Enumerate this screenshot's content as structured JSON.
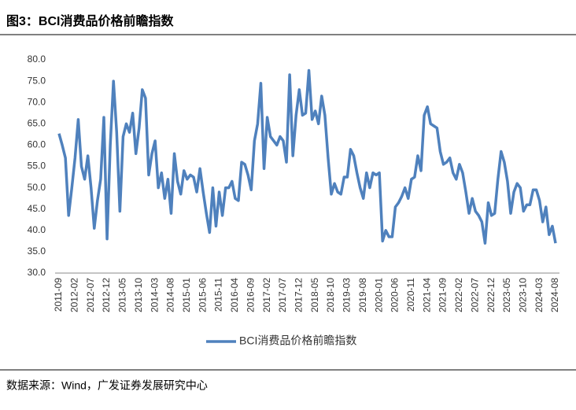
{
  "chart_data": {
    "type": "line",
    "title": "图3：BCI消费品价格前瞻指数",
    "source": "数据来源：Wind，广发证券发展研究中心",
    "categories": [
      "2011-09",
      null,
      null,
      null,
      null,
      "2012-02",
      null,
      null,
      null,
      null,
      "2012-07",
      null,
      null,
      null,
      null,
      "2012-12",
      null,
      null,
      null,
      null,
      "2013-05",
      null,
      null,
      null,
      null,
      "2013-10",
      null,
      null,
      null,
      null,
      "2014-03",
      null,
      null,
      null,
      null,
      "2014-08",
      null,
      null,
      null,
      null,
      "2015-01",
      null,
      null,
      null,
      null,
      "2015-06",
      null,
      null,
      null,
      null,
      "2015-11",
      null,
      null,
      null,
      null,
      "2016-04",
      null,
      null,
      null,
      null,
      "2016-09",
      null,
      null,
      null,
      null,
      "2017-02",
      null,
      null,
      null,
      null,
      "2017-07",
      null,
      null,
      null,
      null,
      "2017-12",
      null,
      null,
      null,
      null,
      "2018-05",
      null,
      null,
      null,
      null,
      "2018-10",
      null,
      null,
      null,
      null,
      "2019-03",
      null,
      null,
      null,
      null,
      "2019-08",
      null,
      null,
      null,
      null,
      "2020-01",
      null,
      null,
      null,
      null,
      "2020-06",
      null,
      null,
      null,
      null,
      "2020-11",
      null,
      null,
      null,
      null,
      "2021-04",
      null,
      null,
      null,
      null,
      "2021-09",
      null,
      null,
      null,
      null,
      "2022-02",
      null,
      null,
      null,
      null,
      "2022-07",
      null,
      null,
      null,
      null,
      "2022-12",
      null,
      null,
      null,
      null,
      "2023-05",
      null,
      null,
      null,
      null,
      "2023-10",
      null,
      null,
      null,
      null,
      "2024-03",
      null,
      null,
      null,
      null,
      "2024-08"
    ],
    "series": [
      {
        "name": "BCI消费品价格前瞻指数",
        "color": "#4f81bd",
        "values": [
          62.7,
          60,
          57,
          43.5,
          50,
          57,
          66,
          55,
          52,
          57.5,
          50,
          40.5,
          47,
          52,
          66.5,
          38,
          60,
          75,
          63,
          44.5,
          62,
          65,
          63,
          67.5,
          58,
          64,
          73,
          71,
          53,
          58,
          61,
          50,
          53.5,
          47.5,
          52,
          44,
          58,
          51.5,
          48.5,
          54,
          52,
          53,
          52.5,
          49,
          54.5,
          49,
          44,
          39.5,
          50,
          41,
          49,
          43.5,
          50,
          50,
          51.5,
          47.5,
          47,
          56,
          55.5,
          53,
          49.5,
          61,
          65,
          74.5,
          54.5,
          66.5,
          62,
          61,
          60,
          62,
          61,
          56,
          76.5,
          57.5,
          67,
          73,
          67,
          67.5,
          77.5,
          66,
          68,
          65,
          71.5,
          67,
          57,
          48.5,
          51,
          49,
          48.5,
          52.5,
          52.5,
          59,
          57.5,
          53.5,
          50,
          47.5,
          53.5,
          50,
          53.5,
          53,
          53.5,
          37.5,
          40,
          38.5,
          38.5,
          45.5,
          46.5,
          48,
          50,
          47.5,
          52,
          52.5,
          57.5,
          54,
          67,
          69,
          65,
          64.5,
          64,
          58.5,
          55.5,
          56,
          57,
          53.5,
          52,
          55.5,
          53.5,
          49,
          44,
          47.5,
          44.5,
          43.5,
          42,
          37,
          46.5,
          43.5,
          44,
          52,
          58.5,
          56,
          51.5,
          44,
          49,
          51,
          50,
          44.5,
          46,
          46,
          49.5,
          49.5,
          47,
          42,
          45.5,
          39,
          41,
          37
        ]
      }
    ],
    "ylim": [
      30,
      80
    ],
    "yticks": [
      {
        "value": 30,
        "label": "30.0"
      },
      {
        "value": 35,
        "label": "35.0"
      },
      {
        "value": 40,
        "label": "40.0"
      },
      {
        "value": 45,
        "label": "45.0"
      },
      {
        "value": 50,
        "label": "50.0"
      },
      {
        "value": 55,
        "label": "55.0"
      },
      {
        "value": 60,
        "label": "60.0"
      },
      {
        "value": 65,
        "label": "65.0"
      },
      {
        "value": 70,
        "label": "70.0"
      },
      {
        "value": 75,
        "label": "75.0"
      },
      {
        "value": 80,
        "label": "80.0"
      }
    ],
    "grid": false,
    "legend": "bottom"
  }
}
